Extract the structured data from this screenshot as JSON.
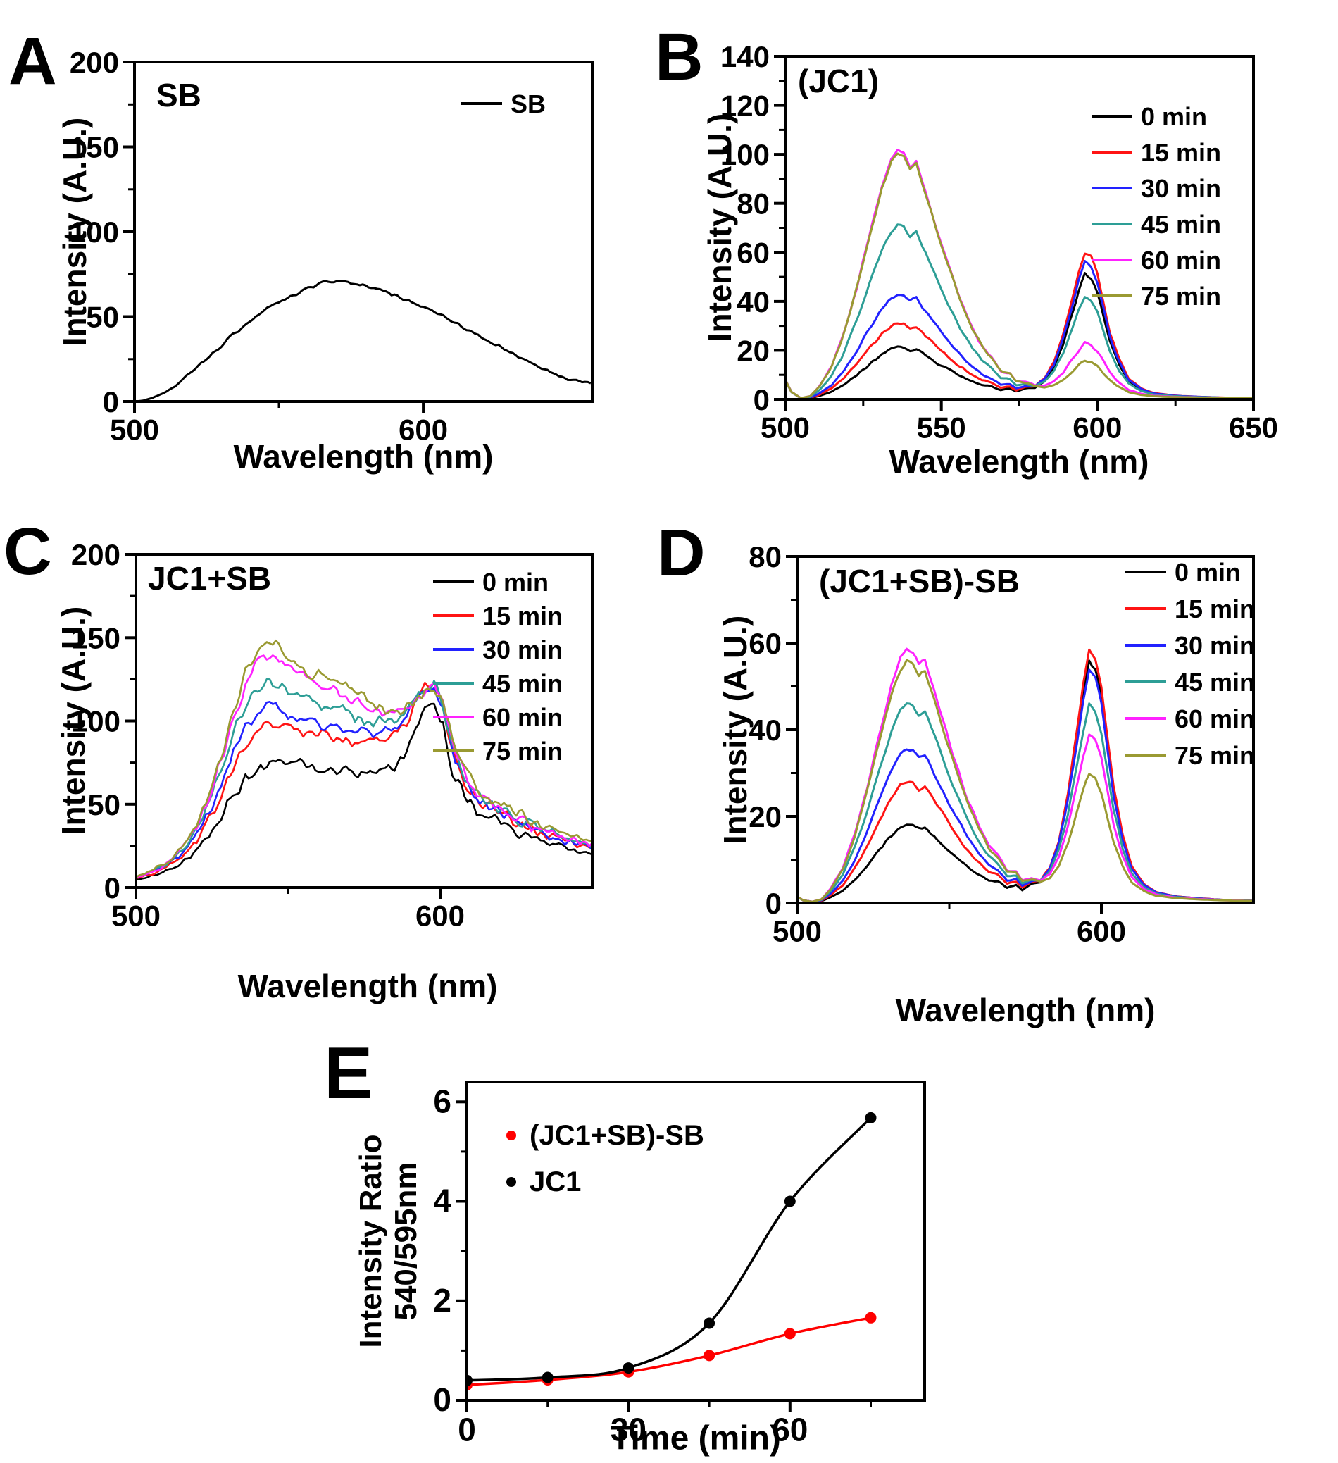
{
  "figure_description": "Fluorescence spectra panels A-E",
  "time_series_labels": [
    "0 min",
    "15 min",
    "30 min",
    "45 min",
    "60 min",
    "75 min"
  ],
  "series_colors": {
    "0 min": "#000000",
    "15 min": "#ff1414",
    "30 min": "#2222ff",
    "45 min": "#2d9e96",
    "60 min": "#ff22ff",
    "75 min": "#9a9a32",
    "JC1_ratio": "#000000",
    "JC1_SB_SB_ratio": "#ff0000"
  },
  "chart_data": [
    {
      "id": "A",
      "panel_letter": "A",
      "type": "line",
      "title": "SB",
      "xlabel": "Wavelength (nm)",
      "ylabel": "Intensity (A.U.)",
      "xlim": [
        500,
        658.5
      ],
      "ylim": [
        0,
        200
      ],
      "xticks_major": [
        500,
        600
      ],
      "xticks_minor": [
        550
      ],
      "yticks_major": [
        0,
        50,
        100,
        150,
        200
      ],
      "yticks_minor": [
        25,
        75,
        125,
        175
      ],
      "legend_position": "top-right",
      "grid": false,
      "x": [
        500,
        503,
        506,
        510,
        514,
        518,
        522,
        526,
        530,
        534,
        538,
        542,
        546,
        550,
        554,
        558,
        562,
        566,
        570,
        574,
        578,
        582,
        586,
        590,
        594,
        598,
        602,
        606,
        610,
        614,
        618,
        622,
        626,
        630,
        634,
        638,
        642,
        646,
        650,
        654,
        658
      ],
      "series": [
        {
          "name": "SB",
          "color": "#000000",
          "y": [
            0,
            0.5,
            2,
            5,
            9,
            15,
            21,
            27,
            33,
            39,
            45,
            50,
            55,
            59,
            62,
            65,
            68,
            70,
            71,
            70,
            69,
            67,
            65,
            63,
            60,
            57,
            54,
            51,
            47,
            44,
            40,
            36,
            33,
            29,
            26,
            22,
            19,
            16,
            13,
            12,
            11
          ]
        }
      ]
    },
    {
      "id": "B",
      "panel_letter": "B",
      "type": "line",
      "title": "(JC1)",
      "xlabel": "Wavelength (nm)",
      "ylabel": "Intensity (A.U.)",
      "xlim": [
        500,
        650
      ],
      "ylim": [
        0,
        140
      ],
      "xticks_major": [
        500,
        550,
        600,
        650
      ],
      "xticks_minor": [
        525,
        575,
        625
      ],
      "yticks_major": [
        0,
        20,
        40,
        60,
        80,
        100,
        120,
        140
      ],
      "yticks_minor": [
        10,
        30,
        50,
        70,
        90,
        110,
        130
      ],
      "legend_position": "top-right",
      "grid": false,
      "peak1_nm": 536,
      "peak2_nm": 596,
      "profile": [
        [
          500,
          0,
          0,
          8
        ],
        [
          502,
          0,
          0,
          3
        ],
        [
          505,
          0,
          0,
          0.5
        ],
        [
          508,
          0.01,
          0,
          0.3
        ],
        [
          511,
          0.05,
          0,
          0.4
        ],
        [
          515,
          0.13,
          0,
          0.5
        ],
        [
          519,
          0.27,
          0,
          0.5
        ],
        [
          523,
          0.45,
          0,
          0.5
        ],
        [
          527,
          0.66,
          0,
          0.5
        ],
        [
          531,
          0.85,
          0,
          0.5
        ],
        [
          534,
          0.96,
          0,
          0.3
        ],
        [
          536,
          1,
          0,
          0
        ],
        [
          538,
          0.985,
          0,
          0.2
        ],
        [
          540,
          0.93,
          0,
          0.4
        ],
        [
          542,
          0.955,
          0,
          0.2
        ],
        [
          545,
          0.83,
          0,
          0.5
        ],
        [
          548,
          0.7,
          0,
          0.8
        ],
        [
          552,
          0.54,
          0,
          1
        ],
        [
          556,
          0.39,
          0,
          1.3
        ],
        [
          560,
          0.27,
          0,
          1.6
        ],
        [
          563,
          0.2,
          0,
          1.6
        ],
        [
          566,
          0.145,
          0,
          2.4
        ],
        [
          569,
          0.1,
          0,
          1.7
        ],
        [
          572,
          0.075,
          0,
          2.9
        ],
        [
          574,
          0.055,
          0,
          2
        ],
        [
          577,
          0.04,
          0.02,
          2.6
        ],
        [
          580,
          0.025,
          0.04,
          2.2
        ],
        [
          583,
          0.012,
          0.1,
          2.1
        ],
        [
          586,
          0.006,
          0.22,
          1.6
        ],
        [
          589,
          0,
          0.42,
          1.1
        ],
        [
          592,
          0,
          0.68,
          0.6
        ],
        [
          594,
          0,
          0.86,
          0.3
        ],
        [
          596,
          0,
          1,
          0
        ],
        [
          598,
          0,
          0.965,
          0
        ],
        [
          600,
          0,
          0.85,
          0.2
        ],
        [
          602,
          0,
          0.65,
          0.4
        ],
        [
          604,
          0,
          0.45,
          0.6
        ],
        [
          607,
          0,
          0.26,
          0.8
        ],
        [
          610,
          0,
          0.13,
          0.9
        ],
        [
          614,
          0,
          0.06,
          0.9
        ],
        [
          618,
          0,
          0.03,
          0.8
        ],
        [
          624,
          0,
          0.015,
          0.7
        ],
        [
          632,
          0,
          0.008,
          0.6
        ],
        [
          640,
          0,
          0.004,
          0.5
        ],
        [
          650,
          0,
          0.002,
          0.4
        ]
      ],
      "series": [
        {
          "name": "0 min",
          "color": "#000000",
          "p1": 21,
          "p2": 51
        },
        {
          "name": "15 min",
          "color": "#ff1414",
          "p1": 31,
          "p2": 60
        },
        {
          "name": "30 min",
          "color": "#2222ff",
          "p1": 43,
          "p2": 56
        },
        {
          "name": "45 min",
          "color": "#2d9e96",
          "p1": 71,
          "p2": 42
        },
        {
          "name": "60 min",
          "color": "#ff22ff",
          "p1": 101.5,
          "p2": 23
        },
        {
          "name": "75 min",
          "color": "#9a9a32",
          "p1": 100.5,
          "p2": 16
        }
      ]
    },
    {
      "id": "C",
      "panel_letter": "C",
      "type": "line",
      "title": "JC1+SB",
      "xlabel": "Wavelength (nm)",
      "ylabel": "Intensity (A.U.)",
      "xlim": [
        500,
        650
      ],
      "ylim": [
        0,
        200
      ],
      "xticks_major": [
        500,
        600
      ],
      "xticks_minor": [
        550
      ],
      "yticks_major": [
        0,
        50,
        100,
        150,
        200
      ],
      "yticks_minor": [
        25,
        75,
        125,
        175
      ],
      "legend_position": "top-right",
      "grid": false,
      "x": [
        500,
        505,
        510,
        515,
        520,
        524,
        528,
        532,
        536,
        540,
        544,
        548,
        552,
        556,
        560,
        564,
        568,
        572,
        576,
        580,
        584,
        588,
        592,
        595,
        598,
        601,
        604,
        608,
        612,
        616,
        620,
        626,
        632,
        640,
        650
      ],
      "series": [
        {
          "name": "0 min",
          "color": "#000000",
          "y": [
            5,
            7,
            10,
            15,
            22,
            30,
            42,
            55,
            65,
            71,
            74,
            75,
            74,
            73,
            72,
            71,
            70,
            69,
            69,
            70,
            72,
            78,
            95,
            108,
            110,
            96,
            70,
            55,
            47,
            43,
            38,
            33,
            29,
            24,
            20
          ]
        },
        {
          "name": "15 min",
          "color": "#ff1414",
          "y": [
            6,
            8,
            12,
            18,
            28,
            40,
            56,
            72,
            85,
            95,
            100,
            97,
            94,
            92,
            92,
            90,
            89,
            88,
            88,
            89,
            92,
            98,
            110,
            119,
            122,
            108,
            82,
            63,
            53,
            48,
            44,
            38,
            33,
            28,
            23
          ]
        },
        {
          "name": "30 min",
          "color": "#2222ff",
          "y": [
            6,
            9,
            13,
            20,
            31,
            45,
            62,
            80,
            95,
            105,
            110,
            107,
            103,
            100,
            99,
            97,
            95,
            93,
            92,
            92,
            94,
            100,
            111,
            119,
            121,
            107,
            82,
            64,
            54,
            49,
            45,
            39,
            34,
            29,
            24
          ]
        },
        {
          "name": "45 min",
          "color": "#2d9e96",
          "y": [
            6,
            9,
            14,
            22,
            34,
            50,
            70,
            92,
            110,
            121,
            125,
            121,
            116,
            112,
            110,
            108,
            106,
            103,
            100,
            99,
            100,
            104,
            113,
            120,
            122,
            108,
            84,
            66,
            56,
            50,
            46,
            40,
            35,
            30,
            25
          ]
        },
        {
          "name": "60 min",
          "color": "#ff22ff",
          "y": [
            6,
            9,
            14,
            23,
            36,
            54,
            76,
            100,
            122,
            138,
            141,
            136,
            132,
            128,
            124,
            120,
            116,
            112,
            109,
            107,
            106,
            107,
            113,
            119,
            121,
            109,
            86,
            68,
            58,
            52,
            47,
            41,
            36,
            31,
            26
          ]
        },
        {
          "name": "75 min",
          "color": "#9a9a32",
          "y": [
            6,
            10,
            15,
            24,
            38,
            57,
            80,
            106,
            128,
            144,
            147,
            142,
            136,
            131,
            127,
            124,
            121,
            117,
            112,
            108,
            106,
            106,
            112,
            118,
            120,
            110,
            88,
            70,
            60,
            54,
            49,
            43,
            38,
            33,
            28
          ]
        }
      ]
    },
    {
      "id": "D",
      "panel_letter": "D",
      "type": "line",
      "title": "(JC1+SB)-SB",
      "xlabel": "Wavelength (nm)",
      "ylabel": "Intensity (A.U.)",
      "xlim": [
        500,
        650
      ],
      "ylim": [
        0,
        80
      ],
      "xticks_major": [
        500,
        600
      ],
      "xticks_minor": [
        550
      ],
      "yticks_major": [
        0,
        20,
        40,
        60,
        80
      ],
      "yticks_minor": [
        10,
        30,
        50,
        70
      ],
      "legend_position": "top-right",
      "grid": false,
      "peak1_nm": 537,
      "peak2_nm": 597,
      "profile": [
        [
          500,
          0,
          0,
          1.5
        ],
        [
          502,
          0,
          0,
          0.6
        ],
        [
          505,
          0,
          0,
          0.3
        ],
        [
          508,
          0.01,
          0,
          0.3
        ],
        [
          511,
          0.05,
          0,
          0.4
        ],
        [
          515,
          0.13,
          0,
          0.5
        ],
        [
          519,
          0.27,
          0,
          0.5
        ],
        [
          523,
          0.45,
          0,
          0.5
        ],
        [
          527,
          0.66,
          0,
          0.5
        ],
        [
          531,
          0.85,
          0,
          0.5
        ],
        [
          534,
          0.96,
          0,
          0.3
        ],
        [
          536,
          1,
          0,
          0
        ],
        [
          538,
          0.985,
          0,
          0.2
        ],
        [
          540,
          0.93,
          0,
          0.4
        ],
        [
          542,
          0.955,
          0,
          0.2
        ],
        [
          545,
          0.83,
          0,
          0.5
        ],
        [
          548,
          0.7,
          0,
          0.8
        ],
        [
          552,
          0.54,
          0,
          1
        ],
        [
          556,
          0.39,
          0,
          1.3
        ],
        [
          560,
          0.27,
          0,
          1.6
        ],
        [
          563,
          0.2,
          0,
          1.6
        ],
        [
          566,
          0.145,
          0,
          2.4
        ],
        [
          569,
          0.1,
          0,
          1.7
        ],
        [
          572,
          0.075,
          0,
          2.9
        ],
        [
          574,
          0.055,
          0,
          2
        ],
        [
          577,
          0.04,
          0.02,
          2.6
        ],
        [
          580,
          0.025,
          0.04,
          2.2
        ],
        [
          583,
          0.012,
          0.1,
          2.1
        ],
        [
          586,
          0.006,
          0.22,
          1.6
        ],
        [
          589,
          0,
          0.42,
          1.1
        ],
        [
          592,
          0,
          0.68,
          0.6
        ],
        [
          594,
          0,
          0.86,
          0.3
        ],
        [
          596,
          0,
          1,
          0
        ],
        [
          598,
          0,
          0.965,
          0
        ],
        [
          600,
          0,
          0.85,
          0.2
        ],
        [
          602,
          0,
          0.65,
          0.4
        ],
        [
          604,
          0,
          0.45,
          0.6
        ],
        [
          607,
          0,
          0.26,
          0.8
        ],
        [
          610,
          0,
          0.13,
          0.9
        ],
        [
          614,
          0,
          0.06,
          0.9
        ],
        [
          618,
          0,
          0.03,
          0.8
        ],
        [
          624,
          0,
          0.015,
          0.7
        ],
        [
          632,
          0,
          0.008,
          0.6
        ],
        [
          640,
          0,
          0.004,
          0.5
        ],
        [
          650,
          0,
          0.002,
          0.4
        ]
      ],
      "series": [
        {
          "name": "0 min",
          "color": "#000000",
          "p1": 18,
          "p2": 56
        },
        {
          "name": "15 min",
          "color": "#ff1414",
          "p1": 28,
          "p2": 58.5
        },
        {
          "name": "30 min",
          "color": "#2222ff",
          "p1": 35.5,
          "p2": 54
        },
        {
          "name": "45 min",
          "color": "#2d9e96",
          "p1": 46,
          "p2": 46
        },
        {
          "name": "60 min",
          "color": "#ff22ff",
          "p1": 58.5,
          "p2": 39
        },
        {
          "name": "75 min",
          "color": "#9a9a32",
          "p1": 56,
          "p2": 30
        }
      ]
    },
    {
      "id": "E",
      "panel_letter": "E",
      "type": "scatter",
      "title": "",
      "xlabel": "Time (min)",
      "ylabel": "Intensity Ratio",
      "ylabel2": "540/595nm",
      "xlim": [
        0,
        85
      ],
      "ylim": [
        0,
        6.4
      ],
      "xticks_major": [
        0,
        30,
        60
      ],
      "xticks_minor": [
        15,
        45,
        75
      ],
      "yticks_major": [
        0,
        2,
        4,
        6
      ],
      "yticks_minor": [
        1,
        3,
        5
      ],
      "legend_position": "top-left",
      "grid": false,
      "x": [
        0,
        15,
        30,
        45,
        60,
        75
      ],
      "series": [
        {
          "name": "(JC1+SB)-SB",
          "color": "#ff0000",
          "y": [
            0.31,
            0.41,
            0.57,
            0.9,
            1.34,
            1.66
          ]
        },
        {
          "name": "JC1",
          "color": "#000000",
          "y": [
            0.4,
            0.46,
            0.65,
            1.55,
            4.0,
            5.68
          ]
        }
      ]
    }
  ]
}
